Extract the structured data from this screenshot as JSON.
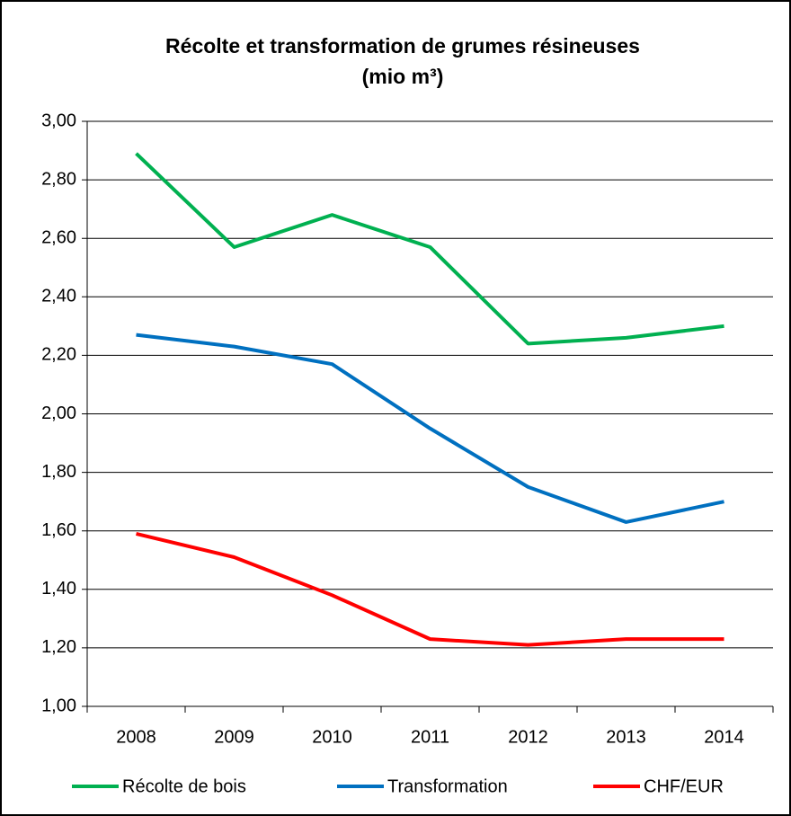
{
  "chart_data": {
    "type": "line",
    "title": "Récolte et transformation de grumes résineuses",
    "subtitle": "(mio m³)",
    "categories": [
      "2008",
      "2009",
      "2010",
      "2011",
      "2012",
      "2013",
      "2014"
    ],
    "series": [
      {
        "name": "Récolte de bois",
        "color": "#00b050",
        "values": [
          2.89,
          2.57,
          2.68,
          2.57,
          2.24,
          2.26,
          2.3
        ]
      },
      {
        "name": "Transformation",
        "color": "#0070c0",
        "values": [
          2.27,
          2.23,
          2.17,
          1.95,
          1.75,
          1.63,
          1.7
        ]
      },
      {
        "name": "CHF/EUR",
        "color": "#ff0000",
        "values": [
          1.59,
          1.51,
          1.38,
          1.23,
          1.21,
          1.23,
          1.23
        ]
      }
    ],
    "ylim": [
      1.0,
      3.0
    ],
    "yticks": [
      {
        "value": 1.0,
        "label": "1,00"
      },
      {
        "value": 1.2,
        "label": "1,20"
      },
      {
        "value": 1.4,
        "label": "1,40"
      },
      {
        "value": 1.6,
        "label": "1,60"
      },
      {
        "value": 1.8,
        "label": "1,80"
      },
      {
        "value": 2.0,
        "label": "2,00"
      },
      {
        "value": 2.2,
        "label": "2,20"
      },
      {
        "value": 2.4,
        "label": "2,40"
      },
      {
        "value": 2.6,
        "label": "2,60"
      },
      {
        "value": 2.8,
        "label": "2,80"
      },
      {
        "value": 3.0,
        "label": "3,00"
      }
    ],
    "grid": true,
    "legend": "bottom"
  }
}
